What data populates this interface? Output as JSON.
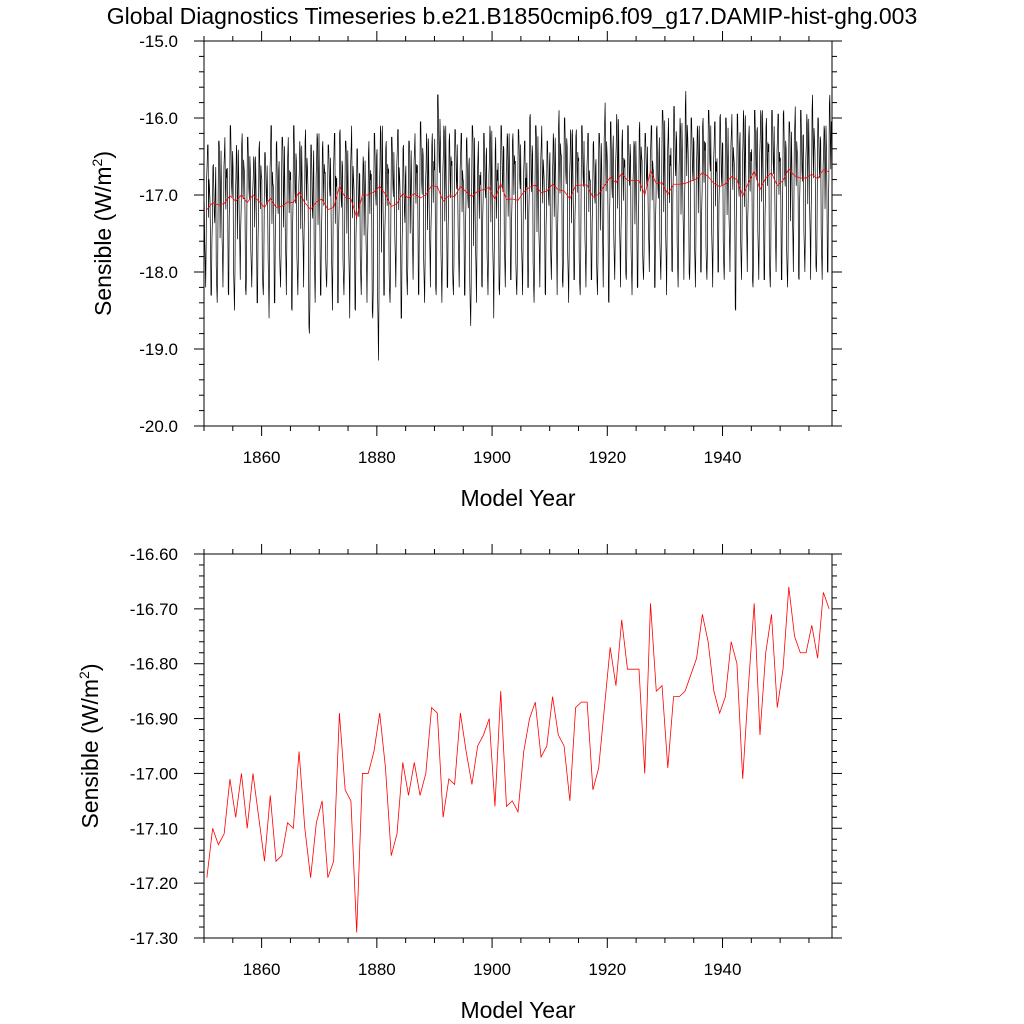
{
  "title": "Global Diagnostics Timeseries b.e21.B1850cmip6.f09_g17.DAMIP-hist-ghg.003",
  "colors": {
    "monthly": "#000000",
    "annual": "#ff0000",
    "axis": "#000000"
  },
  "chart_data": [
    {
      "type": "line",
      "panel": "top",
      "xlabel": "Model Year",
      "ylabel": "Sensible (W/m",
      "ylabel_sup": "2",
      "ylabel_close": ")",
      "xlim": [
        1850,
        1959
      ],
      "ylim": [
        -20.0,
        -15.0
      ],
      "xticks": [
        1860,
        1880,
        1900,
        1920,
        1940
      ],
      "xtick_labels": [
        "1860",
        "1880",
        "1900",
        "1920",
        "1940"
      ],
      "yticks": [
        -20.0,
        -19.0,
        -18.0,
        -17.0,
        -16.0,
        -15.0
      ],
      "ytick_labels": [
        "-20.0",
        "-19.0",
        "-18.0",
        "-17.0",
        "-16.0",
        "-15.0"
      ],
      "series": [
        {
          "color": "#000000",
          "seasonal": {
            "annual_peak_mean": [
              -16.35,
              -16.6,
              -16.3,
              -16.25,
              -16.1,
              -16.35,
              -16.2,
              -16.25,
              -16.5,
              -16.3,
              -16.45,
              -16.1,
              -16.3,
              -16.25,
              -16.25,
              -16.1,
              -16.3,
              -16.15,
              -16.35,
              -16.2,
              -16.3,
              -16.35,
              -16.2,
              -16.15,
              -16.3,
              -16.1,
              -16.4,
              -16.5,
              -16.3,
              -16.2,
              -16.1,
              -16.3,
              -16.25,
              -16.15,
              -16.35,
              -16.3,
              -16.2,
              -16.05,
              -16.2,
              -16.2,
              -15.7,
              -16.1,
              -16.2,
              -16.15,
              -16.2,
              -16.25,
              -16.1,
              -16.3,
              -16.2,
              -16.1,
              -16.25,
              -16.1,
              -16.2,
              -16.2,
              -16.15,
              -16.3,
              -15.95,
              -16.1,
              -16.1,
              -16.3,
              -16.2,
              -15.9,
              -16.0,
              -16.15,
              -16.15,
              -16.1,
              -16.2,
              -16.3,
              -16.2,
              -15.8,
              -16.05,
              -15.95,
              -16.15,
              -16.1,
              -16.3,
              -16.05,
              -16.2,
              -16.1,
              -16.1,
              -15.9,
              -16.0,
              -15.85,
              -16.0,
              -15.65,
              -16.0,
              -16.1,
              -16.0,
              -15.9,
              -16.05,
              -15.95,
              -16.0,
              -15.95,
              -15.95,
              -15.9,
              -16.1,
              -15.9,
              -15.9,
              -16.0,
              -15.9,
              -15.95,
              -15.9,
              -16.05,
              -15.85,
              -15.9,
              -15.95,
              -15.7,
              -16.0,
              -16.1,
              -15.7
            ],
            "annual_trough_mean": [
              -18.2,
              -18.3,
              -18.4,
              -18.2,
              -18.3,
              -18.5,
              -18.1,
              -18.3,
              -18.2,
              -18.4,
              -18.3,
              -18.6,
              -18.4,
              -18.2,
              -18.3,
              -18.5,
              -18.3,
              -18.2,
              -18.8,
              -18.4,
              -18.3,
              -18.2,
              -18.5,
              -18.4,
              -18.3,
              -18.6,
              -18.5,
              -18.3,
              -18.4,
              -18.6,
              -19.15,
              -18.3,
              -18.4,
              -18.2,
              -18.6,
              -18.3,
              -18.1,
              -18.3,
              -18.4,
              -18.2,
              -18.3,
              -18.4,
              -18.2,
              -18.3,
              -18.2,
              -18.3,
              -18.7,
              -18.4,
              -18.2,
              -18.3,
              -18.6,
              -18.3,
              -18.2,
              -18.1,
              -18.3,
              -18.3,
              -18.2,
              -18.4,
              -18.2,
              -18.3,
              -18.1,
              -18.3,
              -18.2,
              -18.4,
              -18.1,
              -18.3,
              -18.2,
              -18.1,
              -18.3,
              -18.2,
              -18.4,
              -18.1,
              -18.2,
              -18.1,
              -18.3,
              -18.2,
              -18.1,
              -18.0,
              -18.2,
              -18.1,
              -18.3,
              -18.0,
              -18.2,
              -18.1,
              -18.1,
              -18.2,
              -18.0,
              -18.1,
              -18.2,
              -18.0,
              -18.1,
              -18.0,
              -18.5,
              -18.1,
              -18.0,
              -18.2,
              -18.1,
              -18.1,
              -18.2,
              -18.0,
              -18.1,
              -18.2,
              -18.0,
              -18.1,
              -18.0,
              -18.1,
              -18.0,
              -18.1,
              -18.0
            ]
          }
        },
        {
          "color": "#ff0000",
          "x": [
            1850.5,
            1851.5,
            1852.5,
            1853.5,
            1854.5,
            1855.5,
            1856.5,
            1857.5,
            1858.5,
            1859.5,
            1860.5,
            1861.5,
            1862.5,
            1863.5,
            1864.5,
            1865.5,
            1866.5,
            1867.5,
            1868.5,
            1869.5,
            1870.5,
            1871.5,
            1872.5,
            1873.5,
            1874.5,
            1875.5,
            1876.5,
            1877.5,
            1878.5,
            1879.5,
            1880.5,
            1881.5,
            1882.5,
            1883.5,
            1884.5,
            1885.5,
            1886.5,
            1887.5,
            1888.5,
            1889.5,
            1890.5,
            1891.5,
            1892.5,
            1893.5,
            1894.5,
            1895.5,
            1896.5,
            1897.5,
            1898.5,
            1899.5,
            1900.5,
            1901.5,
            1902.5,
            1903.5,
            1904.5,
            1905.5,
            1906.5,
            1907.5,
            1908.5,
            1909.5,
            1910.5,
            1911.5,
            1912.5,
            1913.5,
            1914.5,
            1915.5,
            1916.5,
            1917.5,
            1918.5,
            1919.5,
            1920.5,
            1921.5,
            1922.5,
            1923.5,
            1924.5,
            1925.5,
            1926.5,
            1927.5,
            1928.5,
            1929.5,
            1930.5,
            1931.5,
            1932.5,
            1933.5,
            1934.5,
            1935.5,
            1936.5,
            1937.5,
            1938.5,
            1939.5,
            1940.5,
            1941.5,
            1942.5,
            1943.5,
            1944.5,
            1945.5,
            1946.5,
            1947.5,
            1948.5,
            1949.5,
            1950.5,
            1951.5,
            1952.5,
            1953.5,
            1954.5,
            1955.5,
            1956.5,
            1957.5,
            1958.5
          ],
          "values": [
            -17.19,
            -17.1,
            -17.13,
            -17.11,
            -17.01,
            -17.08,
            -17.0,
            -17.1,
            -17.0,
            -17.08,
            -17.16,
            -17.04,
            -17.16,
            -17.15,
            -17.09,
            -17.1,
            -16.96,
            -17.1,
            -17.19,
            -17.09,
            -17.05,
            -17.19,
            -17.16,
            -16.89,
            -17.03,
            -17.05,
            -17.29,
            -17.0,
            -17.0,
            -16.96,
            -16.89,
            -16.99,
            -17.15,
            -17.11,
            -16.98,
            -17.04,
            -16.98,
            -17.04,
            -17.0,
            -16.88,
            -16.89,
            -17.08,
            -17.01,
            -17.02,
            -16.89,
            -16.96,
            -17.02,
            -16.95,
            -16.93,
            -16.9,
            -17.06,
            -16.85,
            -17.06,
            -17.05,
            -17.07,
            -16.96,
            -16.9,
            -16.87,
            -16.97,
            -16.95,
            -16.86,
            -16.93,
            -16.95,
            -17.05,
            -16.88,
            -16.87,
            -16.87,
            -17.03,
            -16.99,
            -16.88,
            -16.77,
            -16.84,
            -16.72,
            -16.81,
            -16.81,
            -16.81,
            -17.0,
            -16.69,
            -16.85,
            -16.84,
            -16.99,
            -16.86,
            -16.86,
            -16.85,
            -16.82,
            -16.79,
            -16.71,
            -16.76,
            -16.85,
            -16.89,
            -16.86,
            -16.76,
            -16.8,
            -17.01,
            -16.84,
            -16.69,
            -16.93,
            -16.78,
            -16.71,
            -16.88,
            -16.81,
            -16.66,
            -16.75,
            -16.78,
            -16.78,
            -16.73,
            -16.79,
            -16.67,
            -16.7
          ]
        }
      ]
    },
    {
      "type": "line",
      "panel": "bottom",
      "xlabel": "Model Year",
      "ylabel": "Sensible (W/m",
      "ylabel_sup": "2",
      "ylabel_close": ")",
      "xlim": [
        1850,
        1959
      ],
      "ylim": [
        -17.3,
        -16.6
      ],
      "xticks": [
        1860,
        1880,
        1900,
        1920,
        1940
      ],
      "xtick_labels": [
        "1860",
        "1880",
        "1900",
        "1920",
        "1940"
      ],
      "yticks": [
        -17.3,
        -17.2,
        -17.1,
        -17.0,
        -16.9,
        -16.8,
        -16.7,
        -16.6
      ],
      "ytick_labels": [
        "-17.30",
        "-17.20",
        "-17.10",
        "-17.00",
        "-16.90",
        "-16.80",
        "-16.70",
        "-16.60"
      ],
      "series": [
        {
          "color": "#ff0000",
          "x": [
            1850.5,
            1851.5,
            1852.5,
            1853.5,
            1854.5,
            1855.5,
            1856.5,
            1857.5,
            1858.5,
            1859.5,
            1860.5,
            1861.5,
            1862.5,
            1863.5,
            1864.5,
            1865.5,
            1866.5,
            1867.5,
            1868.5,
            1869.5,
            1870.5,
            1871.5,
            1872.5,
            1873.5,
            1874.5,
            1875.5,
            1876.5,
            1877.5,
            1878.5,
            1879.5,
            1880.5,
            1881.5,
            1882.5,
            1883.5,
            1884.5,
            1885.5,
            1886.5,
            1887.5,
            1888.5,
            1889.5,
            1890.5,
            1891.5,
            1892.5,
            1893.5,
            1894.5,
            1895.5,
            1896.5,
            1897.5,
            1898.5,
            1899.5,
            1900.5,
            1901.5,
            1902.5,
            1903.5,
            1904.5,
            1905.5,
            1906.5,
            1907.5,
            1908.5,
            1909.5,
            1910.5,
            1911.5,
            1912.5,
            1913.5,
            1914.5,
            1915.5,
            1916.5,
            1917.5,
            1918.5,
            1919.5,
            1920.5,
            1921.5,
            1922.5,
            1923.5,
            1924.5,
            1925.5,
            1926.5,
            1927.5,
            1928.5,
            1929.5,
            1930.5,
            1931.5,
            1932.5,
            1933.5,
            1934.5,
            1935.5,
            1936.5,
            1937.5,
            1938.5,
            1939.5,
            1940.5,
            1941.5,
            1942.5,
            1943.5,
            1944.5,
            1945.5,
            1946.5,
            1947.5,
            1948.5,
            1949.5,
            1950.5,
            1951.5,
            1952.5,
            1953.5,
            1954.5,
            1955.5,
            1956.5,
            1957.5,
            1958.5
          ],
          "values": [
            -17.19,
            -17.1,
            -17.13,
            -17.11,
            -17.01,
            -17.08,
            -17.0,
            -17.1,
            -17.0,
            -17.08,
            -17.16,
            -17.04,
            -17.16,
            -17.15,
            -17.09,
            -17.1,
            -16.96,
            -17.1,
            -17.19,
            -17.09,
            -17.05,
            -17.19,
            -17.16,
            -16.89,
            -17.03,
            -17.05,
            -17.29,
            -17.0,
            -17.0,
            -16.96,
            -16.89,
            -16.99,
            -17.15,
            -17.11,
            -16.98,
            -17.04,
            -16.98,
            -17.04,
            -17.0,
            -16.88,
            -16.89,
            -17.08,
            -17.01,
            -17.02,
            -16.89,
            -16.96,
            -17.02,
            -16.95,
            -16.93,
            -16.9,
            -17.06,
            -16.85,
            -17.06,
            -17.05,
            -17.07,
            -16.96,
            -16.9,
            -16.87,
            -16.97,
            -16.95,
            -16.86,
            -16.93,
            -16.95,
            -17.05,
            -16.88,
            -16.87,
            -16.87,
            -17.03,
            -16.99,
            -16.88,
            -16.77,
            -16.84,
            -16.72,
            -16.81,
            -16.81,
            -16.81,
            -17.0,
            -16.69,
            -16.85,
            -16.84,
            -16.99,
            -16.86,
            -16.86,
            -16.85,
            -16.82,
            -16.79,
            -16.71,
            -16.76,
            -16.85,
            -16.89,
            -16.86,
            -16.76,
            -16.8,
            -17.01,
            -16.84,
            -16.69,
            -16.93,
            -16.78,
            -16.71,
            -16.88,
            -16.81,
            -16.66,
            -16.75,
            -16.78,
            -16.78,
            -16.73,
            -16.79,
            -16.67,
            -16.7
          ]
        }
      ]
    }
  ]
}
